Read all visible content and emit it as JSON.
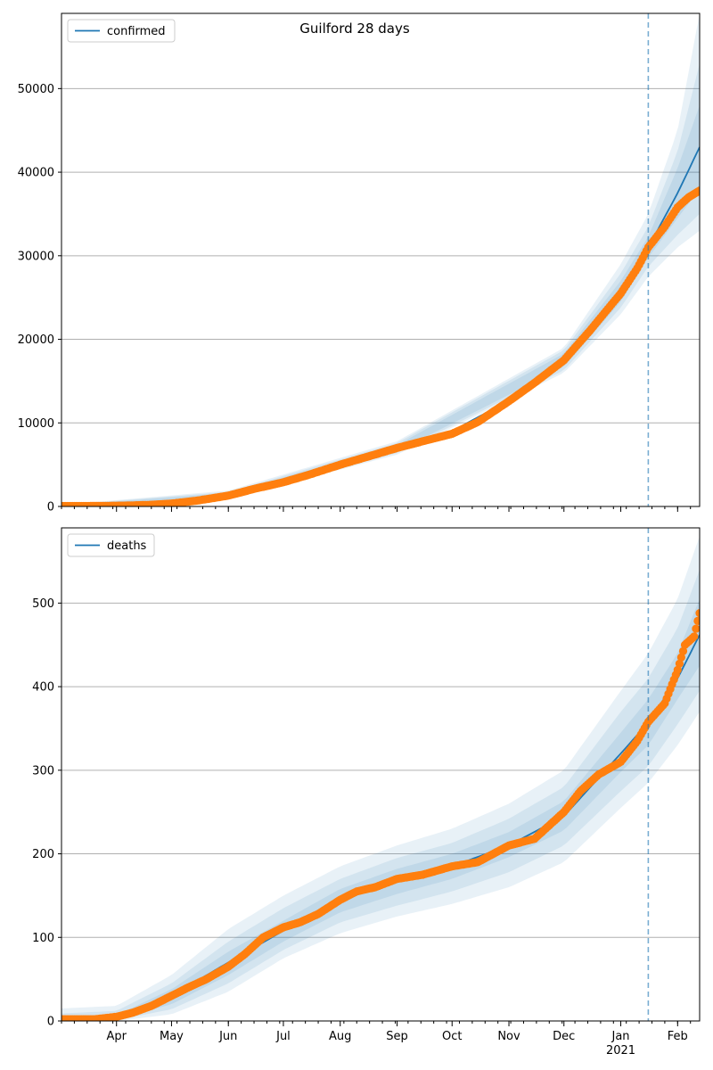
{
  "suptitle": "Guilford 28 days",
  "colors": {
    "model": "#1f77b4",
    "observed": "#ff7f0e",
    "band": "#1f77b4",
    "grid": "#b0b0b0",
    "cutoff": "#1f77b4"
  },
  "chart_data": [
    {
      "type": "line",
      "legend": "confirmed",
      "legend_position": "top-left",
      "grid": "y",
      "x_range": [
        "2020-03-02",
        "2021-02-13"
      ],
      "y_range": [
        0,
        59000
      ],
      "y_ticks": [
        0,
        10000,
        20000,
        30000,
        40000,
        50000
      ],
      "x_tick_labels": [],
      "forecast_start": "2021-01-16",
      "model": {
        "x": [
          "2020-03-02",
          "2020-04-01",
          "2020-05-01",
          "2020-06-01",
          "2020-07-01",
          "2020-08-01",
          "2020-09-01",
          "2020-10-01",
          "2020-11-01",
          "2020-12-01",
          "2021-01-01",
          "2021-01-16",
          "2021-02-01",
          "2021-02-13"
        ],
        "y": [
          50,
          120,
          400,
          1400,
          2900,
          5000,
          7000,
          9000,
          12700,
          17500,
          25800,
          31000,
          37500,
          43000
        ]
      },
      "bands": [
        {
          "x": [
            "2020-03-02",
            "2020-06-01",
            "2020-09-01",
            "2020-12-01",
            "2021-01-01",
            "2021-01-16",
            "2021-02-01",
            "2021-02-13"
          ],
          "lower": [
            0,
            900,
            6200,
            16000,
            23000,
            27500,
            31000,
            33000
          ],
          "upper": [
            200,
            1900,
            7800,
            19000,
            29000,
            35000,
            45000,
            59000
          ]
        },
        {
          "x": [
            "2020-03-02",
            "2020-06-01",
            "2020-09-01",
            "2020-12-01",
            "2021-01-01",
            "2021-01-16",
            "2021-02-01",
            "2021-02-13"
          ],
          "lower": [
            10,
            1000,
            6400,
            16300,
            23800,
            28700,
            32500,
            35000
          ],
          "upper": [
            160,
            1750,
            7600,
            18700,
            27900,
            33500,
            42500,
            53000
          ]
        },
        {
          "x": [
            "2020-03-02",
            "2020-06-01",
            "2020-09-01",
            "2020-12-01",
            "2021-01-01",
            "2021-01-16",
            "2021-02-01",
            "2021-02-13"
          ],
          "lower": [
            20,
            1150,
            6600,
            16700,
            24500,
            29800,
            34500,
            38000
          ],
          "upper": [
            120,
            1600,
            7350,
            18300,
            27000,
            32300,
            40500,
            48000
          ]
        }
      ],
      "observed": {
        "x": [
          "2020-03-02",
          "2020-03-20",
          "2020-04-05",
          "2020-04-20",
          "2020-05-01",
          "2020-05-15",
          "2020-06-01",
          "2020-06-15",
          "2020-07-01",
          "2020-07-15",
          "2020-08-01",
          "2020-08-15",
          "2020-09-01",
          "2020-09-15",
          "2020-10-01",
          "2020-10-15",
          "2020-11-01",
          "2020-11-15",
          "2020-12-01",
          "2020-12-15",
          "2021-01-01",
          "2021-01-10",
          "2021-01-16",
          "2021-01-25",
          "2021-02-01",
          "2021-02-07",
          "2021-02-13"
        ],
        "y": [
          50,
          60,
          100,
          200,
          350,
          700,
          1300,
          2100,
          2900,
          3800,
          5000,
          5900,
          7000,
          7800,
          8700,
          10100,
          12600,
          14800,
          17500,
          21000,
          25500,
          28500,
          31000,
          33500,
          35800,
          37000,
          37800
        ]
      }
    },
    {
      "type": "line",
      "legend": "deaths",
      "legend_position": "top-left",
      "grid": "y",
      "x_range": [
        "2020-03-02",
        "2021-02-13"
      ],
      "y_range": [
        0,
        590
      ],
      "y_ticks": [
        0,
        100,
        200,
        300,
        400,
        500
      ],
      "x_tick_labels": [
        {
          "date": "2020-04-01",
          "label": "Apr"
        },
        {
          "date": "2020-05-01",
          "label": "May"
        },
        {
          "date": "2020-06-01",
          "label": "Jun"
        },
        {
          "date": "2020-07-01",
          "label": "Jul"
        },
        {
          "date": "2020-08-01",
          "label": "Aug"
        },
        {
          "date": "2020-09-01",
          "label": "Sep"
        },
        {
          "date": "2020-10-01",
          "label": "Oct"
        },
        {
          "date": "2020-11-01",
          "label": "Nov"
        },
        {
          "date": "2020-12-01",
          "label": "Dec"
        },
        {
          "date": "2021-01-01",
          "label": "Jan",
          "sublabel": "2021"
        },
        {
          "date": "2021-02-01",
          "label": "Feb"
        }
      ],
      "forecast_start": "2021-01-16",
      "model": {
        "x": [
          "2020-03-02",
          "2020-04-01",
          "2020-05-01",
          "2020-06-01",
          "2020-07-01",
          "2020-08-01",
          "2020-09-01",
          "2020-10-01",
          "2020-11-01",
          "2020-12-01",
          "2021-01-01",
          "2021-01-16",
          "2021-02-01",
          "2021-02-13"
        ],
        "y": [
          1,
          3,
          30,
          70,
          108,
          145,
          168,
          185,
          210,
          245,
          320,
          357,
          410,
          462
        ]
      },
      "bands": [
        {
          "x": [
            "2020-03-02",
            "2020-04-01",
            "2020-05-01",
            "2020-06-01",
            "2020-07-01",
            "2020-08-01",
            "2020-09-01",
            "2020-10-01",
            "2020-11-01",
            "2020-12-01",
            "2021-01-01",
            "2021-01-16",
            "2021-02-01",
            "2021-02-13"
          ],
          "lower": [
            0,
            0,
            8,
            35,
            75,
            105,
            125,
            140,
            160,
            190,
            255,
            285,
            330,
            370
          ],
          "upper": [
            15,
            18,
            55,
            110,
            150,
            185,
            210,
            230,
            260,
            300,
            395,
            440,
            505,
            580
          ]
        },
        {
          "x": [
            "2020-03-02",
            "2020-04-01",
            "2020-05-01",
            "2020-06-01",
            "2020-07-01",
            "2020-08-01",
            "2020-09-01",
            "2020-10-01",
            "2020-11-01",
            "2020-12-01",
            "2021-01-01",
            "2021-01-16",
            "2021-02-01",
            "2021-02-13"
          ],
          "lower": [
            0,
            1,
            14,
            45,
            85,
            118,
            138,
            155,
            178,
            210,
            275,
            305,
            355,
            395
          ],
          "upper": [
            9,
            12,
            45,
            95,
            135,
            170,
            195,
            213,
            242,
            280,
            370,
            410,
            470,
            540
          ]
        },
        {
          "x": [
            "2020-03-02",
            "2020-04-01",
            "2020-05-01",
            "2020-06-01",
            "2020-07-01",
            "2020-08-01",
            "2020-09-01",
            "2020-10-01",
            "2020-11-01",
            "2020-12-01",
            "2021-01-01",
            "2021-01-16",
            "2021-02-01",
            "2021-02-13"
          ],
          "lower": [
            0,
            2,
            20,
            55,
            95,
            130,
            152,
            170,
            196,
            228,
            298,
            330,
            385,
            425
          ],
          "upper": [
            5,
            7,
            38,
            83,
            120,
            158,
            182,
            200,
            226,
            263,
            345,
            385,
            440,
            505
          ]
        }
      ],
      "observed": {
        "x": [
          "2020-03-02",
          "2020-03-20",
          "2020-04-01",
          "2020-04-10",
          "2020-04-20",
          "2020-05-01",
          "2020-05-10",
          "2020-05-20",
          "2020-06-01",
          "2020-06-10",
          "2020-06-20",
          "2020-07-01",
          "2020-07-10",
          "2020-07-20",
          "2020-08-01",
          "2020-08-10",
          "2020-08-20",
          "2020-09-01",
          "2020-09-15",
          "2020-10-01",
          "2020-10-15",
          "2020-11-01",
          "2020-11-15",
          "2020-12-01",
          "2020-12-10",
          "2020-12-20",
          "2021-01-01",
          "2021-01-10",
          "2021-01-16",
          "2021-01-25",
          "2021-02-01",
          "2021-02-05",
          "2021-02-10",
          "2021-02-13"
        ],
        "y": [
          2,
          2,
          5,
          10,
          18,
          30,
          40,
          50,
          65,
          80,
          100,
          112,
          118,
          128,
          145,
          155,
          160,
          170,
          175,
          185,
          190,
          210,
          218,
          250,
          275,
          295,
          310,
          335,
          358,
          380,
          420,
          450,
          460,
          488
        ]
      }
    }
  ]
}
